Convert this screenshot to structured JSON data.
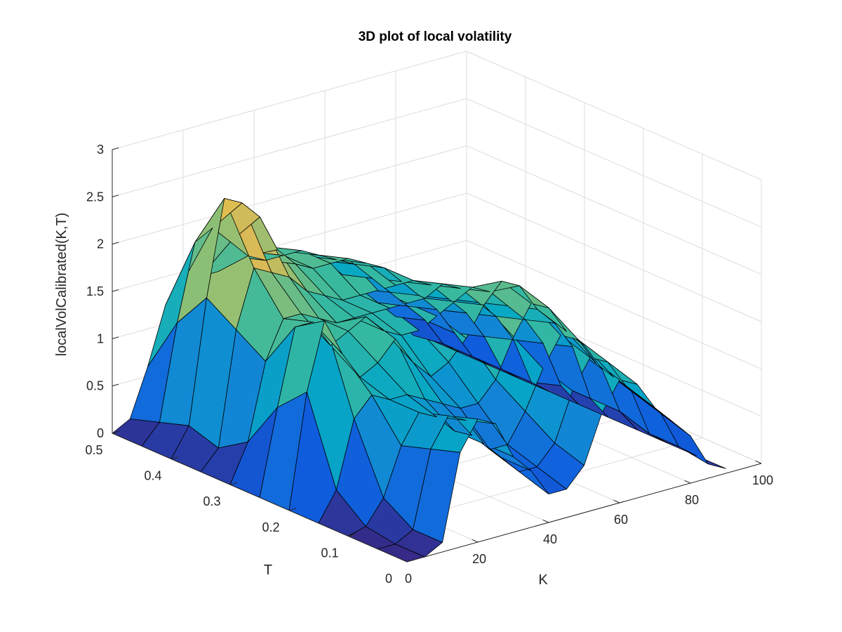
{
  "chart_data": {
    "type": "surface",
    "title": "3D plot of local volatility",
    "xlabel": "K",
    "ylabel": "T",
    "zlabel": "localVolCalibrated(K,T)",
    "xlim": [
      0,
      100
    ],
    "ylim": [
      0,
      0.5
    ],
    "zlim": [
      0,
      3
    ],
    "x_ticks": [
      0,
      20,
      40,
      60,
      80,
      100
    ],
    "x_tick_labels": [
      "0",
      "20",
      "40",
      "60",
      "80",
      "100"
    ],
    "y_ticks": [
      0,
      0.1,
      0.2,
      0.3,
      0.4,
      0.5
    ],
    "y_tick_labels": [
      "0",
      "0.1",
      "0.2",
      "0.3",
      "0.4",
      "0.5"
    ],
    "z_ticks": [
      0,
      0.5,
      1,
      1.5,
      2,
      2.5,
      3
    ],
    "z_tick_labels": [
      "0",
      "0.5",
      "1",
      "1.5",
      "2",
      "2.5",
      "3"
    ],
    "grid": true,
    "colormap": "parula",
    "colormap_stops": [
      "#352a87",
      "#0f5cdd",
      "#1481d6",
      "#06a7c6",
      "#38b99e",
      "#92bf73",
      "#d9ba56",
      "#fcce2e",
      "#f9fb0e"
    ],
    "K": [
      0,
      5,
      10,
      15,
      20,
      25,
      30,
      35,
      40,
      45,
      50,
      55,
      60,
      65,
      70,
      75,
      80,
      85,
      90
    ],
    "T": [
      0,
      0.05,
      0.1,
      0.15,
      0.2,
      0.25,
      0.3,
      0.35,
      0.4,
      0.45,
      0.5
    ],
    "Z": [
      [
        0,
        0,
        0.1,
        1.0,
        1.3,
        1.2,
        0.8,
        0.6,
        0.3,
        0.3,
        0.5,
        1.0,
        1.3,
        1.2,
        0.9,
        0.7,
        0.5,
        0.15,
        0.05
      ],
      [
        0,
        0,
        0.1,
        0.9,
        1.2,
        1.1,
        0.8,
        0.6,
        0.4,
        0.4,
        0.6,
        1.1,
        1.4,
        1.3,
        1.0,
        0.8,
        0.6,
        0.2,
        0.05
      ],
      [
        0,
        0.05,
        0.3,
        0.8,
        1.1,
        1.0,
        0.8,
        0.7,
        0.5,
        0.5,
        0.8,
        1.2,
        1.5,
        1.4,
        1.1,
        0.9,
        0.7,
        0.2,
        0.05
      ],
      [
        0,
        0.3,
        1.0,
        1.2,
        1.1,
        1.1,
        1.0,
        0.9,
        0.8,
        0.8,
        1.0,
        1.4,
        1.7,
        1.6,
        1.3,
        1.1,
        0.8,
        0.3,
        0.05
      ],
      [
        0,
        1.2,
        1.9,
        1.5,
        1.2,
        1.3,
        1.5,
        1.2,
        1.0,
        1.1,
        1.3,
        1.6,
        1.8,
        1.7,
        1.4,
        1.2,
        0.9,
        0.3,
        0.05
      ],
      [
        0,
        0.9,
        1.7,
        1.7,
        1.4,
        1.5,
        1.6,
        1.4,
        1.3,
        1.3,
        1.4,
        1.5,
        1.6,
        1.5,
        1.3,
        1.1,
        0.8,
        0.3,
        0.05
      ],
      [
        0,
        0.4,
        1.2,
        1.6,
        1.6,
        1.5,
        1.4,
        1.4,
        1.4,
        1.4,
        1.4,
        1.4,
        1.5,
        1.4,
        1.2,
        1.0,
        0.7,
        0.2,
        0.05
      ],
      [
        0,
        0.2,
        1.4,
        2.0,
        1.9,
        1.8,
        1.6,
        1.5,
        1.4,
        1.4,
        1.4,
        1.4,
        1.4,
        1.3,
        1.1,
        0.9,
        0.6,
        0.2,
        0.05
      ],
      [
        0,
        0.3,
        1.6,
        2.6,
        2.5,
        2.3,
        1.9,
        1.7,
        1.6,
        1.6,
        1.6,
        1.5,
        1.4,
        1.2,
        1.0,
        0.8,
        0.5,
        0.2,
        0.05
      ],
      [
        0,
        0.2,
        1.2,
        2.0,
        2.1,
        1.9,
        1.7,
        1.6,
        1.6,
        1.6,
        1.5,
        1.4,
        1.3,
        1.1,
        0.9,
        0.7,
        0.5,
        0.2,
        0.05
      ],
      [
        0,
        0.1,
        0.6,
        1.2,
        1.4,
        1.4,
        1.4,
        1.5,
        1.5,
        1.5,
        1.4,
        1.3,
        1.2,
        1.0,
        0.8,
        0.6,
        0.4,
        0.15,
        0.05
      ]
    ]
  }
}
